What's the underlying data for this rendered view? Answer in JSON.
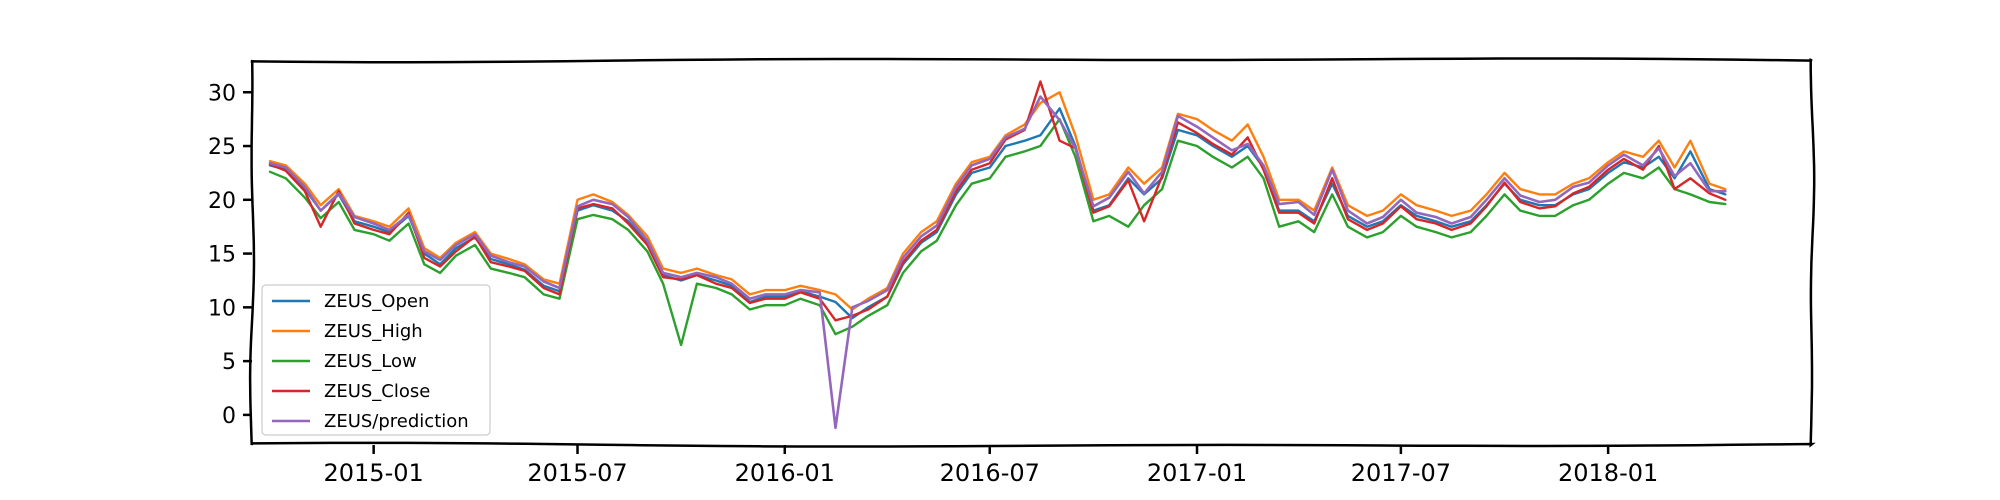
{
  "chart_data": {
    "type": "line",
    "title": "",
    "xlabel": "",
    "ylabel": "",
    "x_ticks": [
      "2015-01",
      "2015-07",
      "2016-01",
      "2016-07",
      "2017-01",
      "2017-07",
      "2018-01"
    ],
    "y_ticks": [
      "0",
      "5",
      "10",
      "15",
      "20",
      "25",
      "30"
    ],
    "xlim": [
      "2014-09-15",
      "2018-07-01"
    ],
    "ylim": [
      -2.8,
      33.0
    ],
    "grid": false,
    "legend_position": "lower-left",
    "x": [
      "2014-10-01",
      "2014-10-15",
      "2014-11-01",
      "2014-11-15",
      "2014-12-01",
      "2014-12-15",
      "2015-01-01",
      "2015-01-15",
      "2015-02-01",
      "2015-02-15",
      "2015-03-01",
      "2015-03-15",
      "2015-04-01",
      "2015-04-15",
      "2015-05-01",
      "2015-05-15",
      "2015-06-01",
      "2015-06-15",
      "2015-07-01",
      "2015-07-15",
      "2015-08-01",
      "2015-08-15",
      "2015-09-01",
      "2015-09-15",
      "2015-10-01",
      "2015-10-15",
      "2015-11-01",
      "2015-11-15",
      "2015-12-01",
      "2015-12-15",
      "2016-01-01",
      "2016-01-15",
      "2016-02-01",
      "2016-02-15",
      "2016-03-01",
      "2016-03-15",
      "2016-04-01",
      "2016-04-15",
      "2016-05-01",
      "2016-05-15",
      "2016-06-01",
      "2016-06-15",
      "2016-07-01",
      "2016-07-15",
      "2016-08-01",
      "2016-08-15",
      "2016-09-01",
      "2016-09-15",
      "2016-10-01",
      "2016-10-15",
      "2016-11-01",
      "2016-11-15",
      "2016-12-01",
      "2016-12-15",
      "2017-01-01",
      "2017-01-15",
      "2017-02-01",
      "2017-02-15",
      "2017-03-01",
      "2017-03-15",
      "2017-04-01",
      "2017-04-15",
      "2017-05-01",
      "2017-05-15",
      "2017-06-01",
      "2017-06-15",
      "2017-07-01",
      "2017-07-15",
      "2017-08-01",
      "2017-08-15",
      "2017-09-01",
      "2017-09-15",
      "2017-10-01",
      "2017-10-15",
      "2017-11-01",
      "2017-11-15",
      "2017-12-01",
      "2017-12-15",
      "2018-01-01",
      "2018-01-15",
      "2018-02-01",
      "2018-02-15",
      "2018-03-01",
      "2018-03-15",
      "2018-04-01",
      "2018-04-15"
    ],
    "series": [
      {
        "name": "ZEUS_Open",
        "color": "#1f77b4",
        "values": [
          23.2,
          22.8,
          21.0,
          19.0,
          20.5,
          18.0,
          17.5,
          17.0,
          18.5,
          15.0,
          14.0,
          15.5,
          16.5,
          14.5,
          14.0,
          13.5,
          12.0,
          11.5,
          19.0,
          19.5,
          19.0,
          18.0,
          16.0,
          13.0,
          12.5,
          13.0,
          12.5,
          12.0,
          10.5,
          11.0,
          11.0,
          11.5,
          11.0,
          10.5,
          9.0,
          10.0,
          11.0,
          14.0,
          16.0,
          17.0,
          20.5,
          22.5,
          23.0,
          25.0,
          25.5,
          26.0,
          28.5,
          25.0,
          19.0,
          19.5,
          22.0,
          20.5,
          22.0,
          26.5,
          26.0,
          25.0,
          24.0,
          25.0,
          23.0,
          19.0,
          19.0,
          18.0,
          21.5,
          18.5,
          17.5,
          18.0,
          19.5,
          18.5,
          18.0,
          17.5,
          18.0,
          19.5,
          21.5,
          20.0,
          19.5,
          19.5,
          20.5,
          21.0,
          22.5,
          23.5,
          23.0,
          24.0,
          22.0,
          24.5,
          21.0,
          20.5
        ]
      },
      {
        "name": "ZEUS_High",
        "color": "#ff7f0e",
        "values": [
          23.6,
          23.2,
          21.5,
          19.5,
          21.0,
          18.5,
          18.0,
          17.5,
          19.2,
          15.5,
          14.6,
          16.0,
          17.0,
          15.0,
          14.5,
          14.0,
          12.6,
          12.2,
          20.0,
          20.5,
          19.8,
          18.6,
          16.6,
          13.6,
          13.2,
          13.6,
          13.0,
          12.6,
          11.2,
          11.6,
          11.6,
          12.0,
          11.6,
          11.2,
          9.8,
          10.8,
          11.8,
          15.0,
          17.0,
          18.0,
          21.5,
          23.5,
          24.0,
          26.0,
          27.0,
          29.0,
          30.0,
          26.0,
          20.0,
          20.5,
          23.0,
          21.5,
          23.0,
          28.0,
          27.5,
          26.5,
          25.5,
          27.0,
          24.0,
          20.0,
          20.0,
          19.0,
          23.0,
          19.5,
          18.5,
          19.0,
          20.5,
          19.5,
          19.0,
          18.5,
          19.0,
          20.5,
          22.5,
          21.0,
          20.5,
          20.5,
          21.5,
          22.0,
          23.5,
          24.5,
          24.0,
          25.5,
          23.0,
          25.5,
          21.5,
          21.0
        ]
      },
      {
        "name": "ZEUS_Low",
        "color": "#2ca02c",
        "values": [
          22.6,
          22.0,
          20.2,
          18.3,
          19.8,
          17.2,
          16.8,
          16.2,
          17.8,
          14.0,
          13.2,
          14.8,
          15.8,
          13.6,
          13.2,
          12.8,
          11.2,
          10.8,
          18.2,
          18.6,
          18.2,
          17.2,
          15.2,
          12.2,
          6.5,
          12.2,
          11.8,
          11.2,
          9.8,
          10.2,
          10.2,
          10.8,
          10.2,
          7.5,
          8.2,
          9.2,
          10.2,
          13.2,
          15.2,
          16.2,
          19.5,
          21.5,
          22.0,
          24.0,
          24.5,
          25.0,
          27.5,
          24.0,
          18.0,
          18.5,
          17.5,
          19.5,
          21.0,
          25.5,
          25.0,
          24.0,
          23.0,
          24.0,
          22.0,
          17.5,
          18.0,
          17.0,
          20.5,
          17.5,
          16.5,
          17.0,
          18.5,
          17.5,
          17.0,
          16.5,
          17.0,
          18.5,
          20.5,
          19.0,
          18.5,
          18.5,
          19.5,
          20.0,
          21.5,
          22.5,
          22.0,
          23.0,
          21.0,
          20.5,
          19.8,
          19.6
        ]
      },
      {
        "name": "ZEUS_Close",
        "color": "#d62728",
        "values": [
          23.3,
          22.7,
          20.8,
          17.5,
          20.8,
          17.8,
          17.2,
          16.8,
          18.8,
          14.6,
          13.8,
          15.2,
          16.6,
          14.2,
          13.8,
          13.4,
          11.8,
          11.2,
          19.2,
          19.6,
          19.2,
          17.8,
          15.8,
          12.8,
          12.6,
          13.0,
          12.2,
          11.8,
          10.4,
          10.8,
          10.8,
          11.4,
          10.8,
          8.8,
          9.2,
          9.8,
          11.0,
          14.2,
          16.2,
          17.2,
          20.8,
          22.8,
          23.4,
          25.6,
          26.5,
          31.0,
          25.5,
          24.8,
          18.8,
          19.4,
          21.8,
          18.0,
          22.2,
          27.2,
          26.2,
          25.2,
          24.2,
          25.8,
          22.8,
          18.8,
          18.8,
          17.8,
          22.0,
          18.2,
          17.2,
          17.8,
          19.4,
          18.2,
          17.8,
          17.2,
          17.8,
          19.4,
          21.6,
          19.8,
          19.2,
          19.4,
          20.6,
          21.2,
          22.8,
          23.8,
          22.8,
          25.0,
          21.0,
          22.0,
          20.6,
          20.0
        ]
      },
      {
        "name": "ZEUS/prediction",
        "color": "#9467bd",
        "values": [
          23.4,
          23.0,
          21.2,
          19.0,
          20.6,
          18.4,
          17.8,
          17.2,
          18.6,
          15.2,
          14.4,
          15.8,
          16.8,
          14.8,
          14.2,
          13.8,
          12.4,
          11.8,
          19.4,
          20.0,
          19.6,
          18.4,
          16.2,
          13.2,
          12.8,
          13.2,
          12.8,
          12.2,
          10.8,
          11.2,
          11.2,
          11.6,
          11.4,
          -1.2,
          10.0,
          10.6,
          11.6,
          14.6,
          16.6,
          17.6,
          21.2,
          23.2,
          23.8,
          25.8,
          26.6,
          29.6,
          27.4,
          24.8,
          19.4,
          20.2,
          22.6,
          20.6,
          22.6,
          27.8,
          26.8,
          25.8,
          24.6,
          25.2,
          23.2,
          19.6,
          19.8,
          18.6,
          22.8,
          19.0,
          17.8,
          18.4,
          20.0,
          18.8,
          18.4,
          17.8,
          18.4,
          20.0,
          22.0,
          20.4,
          19.8,
          20.0,
          21.2,
          21.6,
          23.2,
          24.2,
          23.2,
          24.8,
          22.2,
          23.4,
          20.8,
          20.8
        ]
      }
    ]
  }
}
